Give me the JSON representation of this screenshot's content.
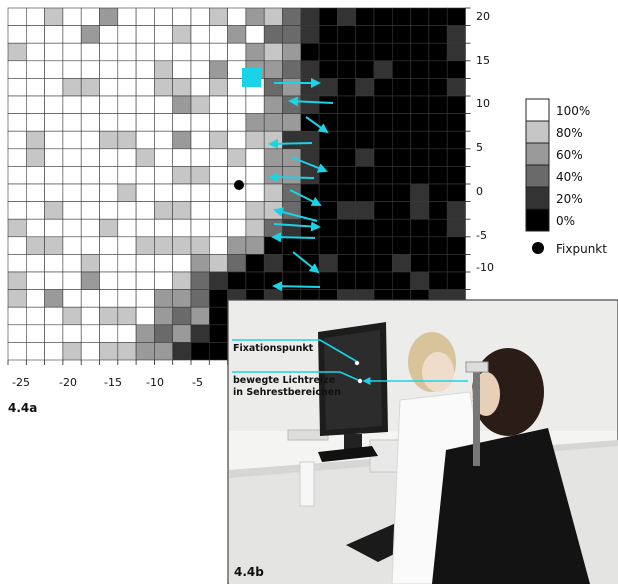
{
  "figure_a": {
    "label": "4.4a",
    "x_ticks": [
      "-25",
      "-20",
      "-15",
      "-10",
      "-5"
    ],
    "y_ticks": [
      "20",
      "15",
      "10",
      "5",
      "0",
      "-5",
      "-10"
    ],
    "grid": {
      "rows": 20,
      "cols": 25,
      "legend_levels": [
        {
          "label": "100%",
          "level": 100,
          "color": "#ffffff"
        },
        {
          "label": "80%",
          "level": 80,
          "color": "#c6c6c6"
        },
        {
          "label": "60%",
          "level": 60,
          "color": "#9a9a9a"
        },
        {
          "label": "40%",
          "level": 40,
          "color": "#6a6a6a"
        },
        {
          "label": "20%",
          "level": 20,
          "color": "#333333"
        },
        {
          "label": "0%",
          "level": 0,
          "color": "#000000"
        }
      ],
      "fixation_marker_label": "Fixpunkt"
    }
  },
  "figure_b": {
    "label": "4.4b",
    "caption_fixation": "Fixationspunkt",
    "caption_stimuli_line1": "bewegte Lichtreize",
    "caption_stimuli_line2": "in Sehrestbereichen"
  },
  "colors": {
    "arrow": "#1ad3e6",
    "highlight": "#1ad3e6"
  }
}
